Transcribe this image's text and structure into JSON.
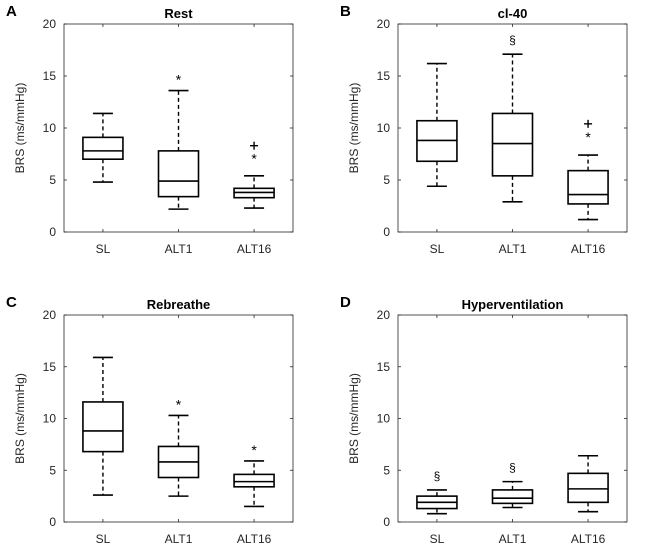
{
  "chart_data": [
    {
      "type": "box",
      "panel": "A",
      "title": "Rest",
      "ylabel": "BRS (ms/mmHg)",
      "xlabel": "",
      "ylim": [
        0,
        20
      ],
      "yticks": [
        0,
        5,
        10,
        15,
        20
      ],
      "categories": [
        "SL",
        "ALT1",
        "ALT16"
      ],
      "boxes": [
        {
          "whisker_low": 4.8,
          "q1": 7.0,
          "median": 7.8,
          "q3": 9.1,
          "whisker_high": 11.4,
          "outliers": [],
          "annotation": ""
        },
        {
          "whisker_low": 2.2,
          "q1": 3.4,
          "median": 4.9,
          "q3": 7.8,
          "whisker_high": 13.6,
          "outliers": [],
          "annotation": "*"
        },
        {
          "whisker_low": 2.3,
          "q1": 3.3,
          "median": 3.8,
          "q3": 4.2,
          "whisker_high": 5.4,
          "outliers": [
            8.3
          ],
          "annotation": "*"
        }
      ]
    },
    {
      "type": "box",
      "panel": "B",
      "title": "cl-40",
      "ylabel": "BRS (ms/mmHg)",
      "xlabel": "",
      "ylim": [
        0,
        20
      ],
      "yticks": [
        0,
        5,
        10,
        15,
        20
      ],
      "categories": [
        "SL",
        "ALT1",
        "ALT16"
      ],
      "boxes": [
        {
          "whisker_low": 4.4,
          "q1": 6.8,
          "median": 8.8,
          "q3": 10.7,
          "whisker_high": 16.2,
          "outliers": [],
          "annotation": ""
        },
        {
          "whisker_low": 2.9,
          "q1": 5.4,
          "median": 8.5,
          "q3": 11.4,
          "whisker_high": 17.1,
          "outliers": [],
          "annotation": "§"
        },
        {
          "whisker_low": 1.2,
          "q1": 2.7,
          "median": 3.6,
          "q3": 5.9,
          "whisker_high": 7.4,
          "outliers": [
            10.4
          ],
          "annotation": "*"
        }
      ]
    },
    {
      "type": "box",
      "panel": "C",
      "title": "Rebreathe",
      "ylabel": "BRS (ms/mmHg)",
      "xlabel": "",
      "ylim": [
        0,
        20
      ],
      "yticks": [
        0,
        5,
        10,
        15,
        20
      ],
      "categories": [
        "SL",
        "ALT1",
        "ALT16"
      ],
      "boxes": [
        {
          "whisker_low": 2.6,
          "q1": 6.8,
          "median": 8.8,
          "q3": 11.6,
          "whisker_high": 15.9,
          "outliers": [],
          "annotation": ""
        },
        {
          "whisker_low": 2.5,
          "q1": 4.3,
          "median": 5.8,
          "q3": 7.3,
          "whisker_high": 10.3,
          "outliers": [],
          "annotation": "*"
        },
        {
          "whisker_low": 1.5,
          "q1": 3.4,
          "median": 3.9,
          "q3": 4.6,
          "whisker_high": 5.9,
          "outliers": [],
          "annotation": "*"
        }
      ]
    },
    {
      "type": "box",
      "panel": "D",
      "title": "Hyperventilation",
      "ylabel": "BRS (ms/mmHg)",
      "xlabel": "",
      "ylim": [
        0,
        20
      ],
      "yticks": [
        0,
        5,
        10,
        15,
        20
      ],
      "categories": [
        "SL",
        "ALT1",
        "ALT16"
      ],
      "boxes": [
        {
          "whisker_low": 0.8,
          "q1": 1.3,
          "median": 1.9,
          "q3": 2.5,
          "whisker_high": 3.1,
          "outliers": [],
          "annotation": "§"
        },
        {
          "whisker_low": 1.4,
          "q1": 1.8,
          "median": 2.3,
          "q3": 3.1,
          "whisker_high": 3.9,
          "outliers": [],
          "annotation": "§"
        },
        {
          "whisker_low": 1.0,
          "q1": 1.9,
          "median": 3.2,
          "q3": 4.7,
          "whisker_high": 6.4,
          "outliers": [],
          "annotation": ""
        }
      ]
    }
  ]
}
